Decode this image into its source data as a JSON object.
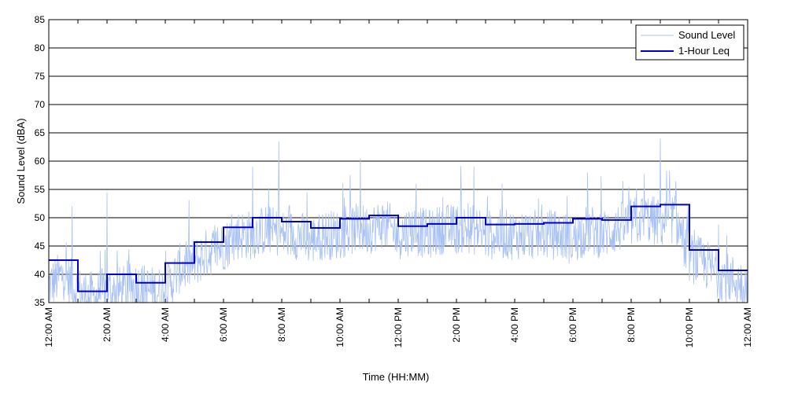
{
  "chart_data": {
    "type": "line",
    "xlabel": "Time (HH:MM)",
    "ylabel": "Sound Level (dBA)",
    "xlim": [
      0,
      24
    ],
    "ylim": [
      35,
      85
    ],
    "y_ticks": [
      35,
      40,
      45,
      50,
      55,
      60,
      65,
      70,
      75,
      80,
      85
    ],
    "x_ticks": [
      0,
      2,
      4,
      6,
      8,
      10,
      12,
      14,
      16,
      18,
      20,
      22,
      24
    ],
    "x_tick_labels": [
      "12:00 AM",
      "2:00 AM",
      "4:00 AM",
      "6:00 AM",
      "8:00 AM",
      "10:00 AM",
      "12:00 PM",
      "2:00 PM",
      "4:00 PM",
      "6:00 PM",
      "8:00 PM",
      "10:00 PM",
      "12:00 AM"
    ],
    "x_minor_ticks_every_hour": true,
    "grid": "horizontal",
    "legend": {
      "position": "top-right",
      "entries": [
        {
          "name": "Sound Level",
          "color": "#a7c1f5"
        },
        {
          "name": "1-Hour Leq",
          "color": "#0000c8"
        }
      ]
    },
    "series": [
      {
        "name": "Sound Level",
        "color": "#a7c1f5",
        "x": [
          0,
          0.5,
          1,
          1.5,
          2,
          2.5,
          3,
          3.5,
          4,
          4.5,
          5,
          5.5,
          6,
          6.5,
          7,
          7.5,
          8,
          8.5,
          9,
          9.5,
          10,
          10.5,
          11,
          11.5,
          12,
          12.5,
          13,
          13.5,
          14,
          14.5,
          15,
          15.5,
          16,
          16.5,
          17,
          17.5,
          18,
          18.5,
          19,
          19.5,
          20,
          20.5,
          21,
          21.5,
          22,
          22.5,
          23,
          23.5,
          24
        ],
        "values": [
          38,
          40,
          37,
          36,
          37,
          37,
          38,
          37,
          37,
          41,
          42,
          44,
          45,
          47,
          47,
          48,
          47,
          47,
          46,
          47,
          47,
          48,
          48,
          49,
          47,
          48,
          47,
          48,
          48,
          48,
          47,
          47,
          47,
          47,
          47,
          47,
          46,
          48,
          47,
          48,
          49,
          50,
          49,
          50,
          43,
          42,
          40,
          39,
          38
        ],
        "peaks": [
          {
            "x": 0.8,
            "value": 52
          },
          {
            "x": 2.0,
            "value": 54.5
          },
          {
            "x": 7.0,
            "value": 59
          },
          {
            "x": 7.9,
            "value": 63.5
          },
          {
            "x": 10.7,
            "value": 60.5
          },
          {
            "x": 14.6,
            "value": 59
          },
          {
            "x": 18.5,
            "value": 58
          },
          {
            "x": 21.0,
            "value": 64
          }
        ]
      },
      {
        "name": "1-Hour Leq",
        "color": "#0000c8",
        "step": true,
        "hours": [
          0,
          1,
          2,
          3,
          4,
          5,
          6,
          7,
          8,
          9,
          10,
          11,
          12,
          13,
          14,
          15,
          16,
          17,
          18,
          19,
          20,
          21,
          22,
          23
        ],
        "values": [
          42.5,
          37,
          40,
          38.5,
          42,
          45.7,
          48.3,
          50,
          49.3,
          48.2,
          49.8,
          50.4,
          48.5,
          48.9,
          50,
          48.8,
          48.9,
          49.1,
          49.8,
          49.6,
          52,
          52.3,
          44.3,
          40.7
        ]
      }
    ]
  }
}
